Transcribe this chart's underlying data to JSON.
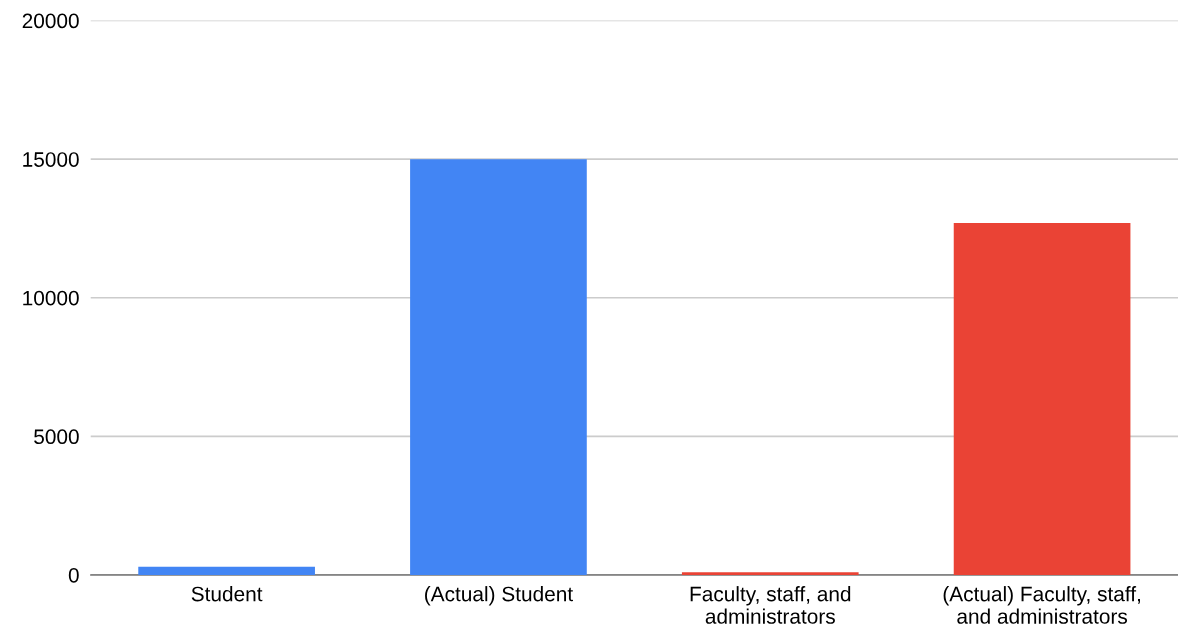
{
  "chart_data": {
    "type": "bar",
    "categories": [
      "Student",
      "(Actual) Student",
      "Faculty, staff, and\nadministrators",
      "(Actual) Faculty, staff,\nand administrators"
    ],
    "values": [
      300,
      15000,
      100,
      12700
    ],
    "colors": [
      "#4285f4",
      "#4285f4",
      "#ea4335",
      "#ea4335"
    ],
    "ylim": [
      0,
      20000
    ],
    "yticks": [
      0,
      5000,
      10000,
      15000,
      20000
    ],
    "grid": "y"
  }
}
